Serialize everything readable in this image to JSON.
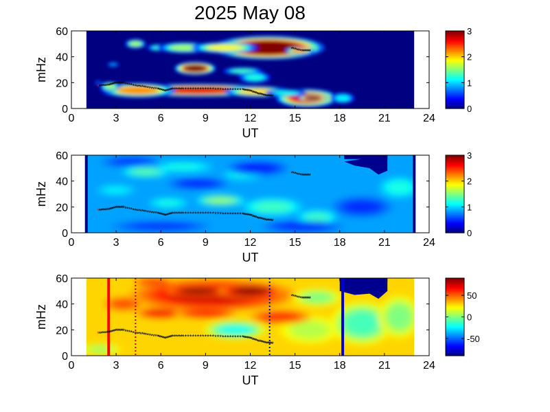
{
  "figure": {
    "title": "2025 May 08"
  },
  "chart_data": [
    {
      "type": "heatmap",
      "xlabel": "UT",
      "ylabel": "mHz",
      "xlim": [
        0,
        24
      ],
      "ylim": [
        0,
        60
      ],
      "xticks": [
        "0",
        "3",
        "6",
        "9",
        "12",
        "15",
        "18",
        "21",
        "24"
      ],
      "yticks": [
        "0",
        "20",
        "40",
        "60"
      ],
      "colorbar": {
        "range": [
          0,
          3
        ],
        "ticks": [
          "0",
          "1",
          "2",
          "3"
        ]
      },
      "data_extent_x": [
        1,
        23
      ],
      "background_value": 0,
      "blobs": [
        {
          "x": 4.3,
          "y": 50,
          "rx": 0.5,
          "ry": 2.5,
          "v": 1.6
        },
        {
          "x": 6.0,
          "y": 47,
          "rx": 0.7,
          "ry": 2,
          "v": 1.3
        },
        {
          "x": 7.6,
          "y": 47,
          "rx": 1.3,
          "ry": 3,
          "v": 1.6
        },
        {
          "x": 13.2,
          "y": 47,
          "rx": 2.7,
          "ry": 6.5,
          "v": 3.4
        },
        {
          "x": 10.3,
          "y": 47,
          "rx": 1.6,
          "ry": 3,
          "v": 1.9
        },
        {
          "x": 15.3,
          "y": 44.5,
          "rx": 0.7,
          "ry": 2,
          "v": 2.2
        },
        {
          "x": 8.3,
          "y": 31,
          "rx": 1.0,
          "ry": 3.5,
          "v": 3.0
        },
        {
          "x": 11.5,
          "y": 29,
          "rx": 1.0,
          "ry": 2,
          "v": 1.3
        },
        {
          "x": 12.3,
          "y": 24,
          "rx": 0.8,
          "ry": 3,
          "v": 1.2
        },
        {
          "x": 8.5,
          "y": 14,
          "rx": 3.8,
          "ry": 3.5,
          "v": 2.7
        },
        {
          "x": 4.5,
          "y": 14,
          "rx": 1.8,
          "ry": 4,
          "v": 2.2
        },
        {
          "x": 2.6,
          "y": 17,
          "rx": 0.5,
          "ry": 2.5,
          "v": 1.6
        },
        {
          "x": 12.5,
          "y": 13,
          "rx": 1.6,
          "ry": 3,
          "v": 2.0
        },
        {
          "x": 15.8,
          "y": 8,
          "rx": 1.5,
          "ry": 5,
          "v": 2.7
        },
        {
          "x": 16.2,
          "y": 8,
          "rx": 0.7,
          "ry": 2,
          "v": 3.3
        },
        {
          "x": 14.4,
          "y": 12,
          "rx": 1.0,
          "ry": 2,
          "v": 1.2
        },
        {
          "x": 18.2,
          "y": 8,
          "rx": 0.6,
          "ry": 3,
          "v": 1.1
        },
        {
          "x": 2.8,
          "y": 34,
          "rx": 0.3,
          "ry": 1.2,
          "v": 0.9
        },
        {
          "x": 1.8,
          "y": 20,
          "rx": 0.2,
          "ry": 1,
          "v": 0.7
        }
      ],
      "ridge": [
        [
          1.9,
          17
        ],
        [
          2.5,
          17.5
        ],
        [
          3.0,
          19
        ],
        [
          3.5,
          19
        ],
        [
          4.3,
          17
        ],
        [
          5.0,
          16
        ],
        [
          5.8,
          14.5
        ],
        [
          6.3,
          13
        ],
        [
          6.8,
          14.5
        ],
        [
          7.5,
          14.5
        ],
        [
          8.5,
          14.5
        ],
        [
          9.5,
          14.5
        ],
        [
          10.5,
          14
        ],
        [
          11.5,
          14
        ],
        [
          12.0,
          13
        ],
        [
          12.5,
          11
        ],
        [
          13.0,
          9.5
        ],
        [
          13.5,
          9
        ],
        [
          14.8,
          46
        ],
        [
          15.5,
          44
        ],
        [
          16.0,
          44
        ]
      ]
    },
    {
      "type": "heatmap",
      "xlabel": "UT",
      "ylabel": "mHz",
      "xlim": [
        0,
        24
      ],
      "ylim": [
        0,
        60
      ],
      "xticks": [
        "0",
        "3",
        "6",
        "9",
        "12",
        "15",
        "18",
        "21",
        "24"
      ],
      "yticks": [
        "0",
        "20",
        "40",
        "60"
      ],
      "colorbar": {
        "range": [
          0,
          3
        ],
        "ticks": [
          "0",
          "1",
          "2",
          "3"
        ]
      },
      "data_extent_x": [
        1,
        23
      ],
      "background_value": 0.85,
      "edge_bars": [
        1.0,
        23.0
      ],
      "mask": {
        "x": [
          18.3,
          21.2
        ],
        "y_min": 47,
        "notch": [
          [
            18.3,
            55
          ],
          [
            19,
            52
          ],
          [
            20,
            50
          ],
          [
            20.6,
            45
          ],
          [
            21.2,
            48
          ],
          [
            21.2,
            60
          ]
        ]
      },
      "blobs": [
        {
          "x": 5.0,
          "y": 47,
          "rx": 1.2,
          "ry": 3,
          "v": 1.4
        },
        {
          "x": 7.5,
          "y": 51,
          "rx": 1.5,
          "ry": 3,
          "v": 1.2
        },
        {
          "x": 11.5,
          "y": 45,
          "rx": 1.0,
          "ry": 3,
          "v": 1.2
        },
        {
          "x": 10.0,
          "y": 25,
          "rx": 1.2,
          "ry": 3,
          "v": 1.6
        },
        {
          "x": 13.5,
          "y": 20,
          "rx": 1.5,
          "ry": 5,
          "v": 1.3
        },
        {
          "x": 6.5,
          "y": 23,
          "rx": 1.0,
          "ry": 3,
          "v": 1.2
        },
        {
          "x": 3.0,
          "y": 33,
          "rx": 1.0,
          "ry": 3,
          "v": 1.1
        },
        {
          "x": 16.5,
          "y": 12,
          "rx": 1.0,
          "ry": 4,
          "v": 1.3
        },
        {
          "x": 22.0,
          "y": 35,
          "rx": 1.0,
          "ry": 6,
          "v": 1.2
        },
        {
          "x": 8.5,
          "y": 38,
          "rx": 1.5,
          "ry": 3,
          "v": 0.4
        },
        {
          "x": 12.5,
          "y": 50,
          "rx": 1.5,
          "ry": 4,
          "v": 0.4
        },
        {
          "x": 6.0,
          "y": 5,
          "rx": 2.5,
          "ry": 3,
          "v": 0.5
        },
        {
          "x": 15.5,
          "y": 5,
          "rx": 2.0,
          "ry": 3,
          "v": 0.4
        },
        {
          "x": 19.5,
          "y": 20,
          "rx": 1.5,
          "ry": 6,
          "v": 0.5
        },
        {
          "x": 4.0,
          "y": 55,
          "rx": 1.5,
          "ry": 3,
          "v": 0.5
        }
      ],
      "ridge": [
        [
          1.9,
          17
        ],
        [
          2.5,
          17.5
        ],
        [
          3.0,
          19
        ],
        [
          3.5,
          19
        ],
        [
          4.3,
          17
        ],
        [
          5.0,
          16
        ],
        [
          5.8,
          14.5
        ],
        [
          6.3,
          13
        ],
        [
          6.8,
          14.5
        ],
        [
          7.5,
          14.5
        ],
        [
          8.5,
          14.5
        ],
        [
          9.5,
          14.5
        ],
        [
          10.5,
          14
        ],
        [
          11.5,
          14
        ],
        [
          12.0,
          13
        ],
        [
          12.5,
          11
        ],
        [
          13.0,
          9.5
        ],
        [
          13.5,
          9
        ],
        [
          14.8,
          46
        ],
        [
          15.5,
          44
        ],
        [
          16.0,
          44
        ]
      ]
    },
    {
      "type": "heatmap",
      "xlabel": "UT",
      "ylabel": "mHz",
      "xlim": [
        0,
        24
      ],
      "ylim": [
        0,
        60
      ],
      "xticks": [
        "0",
        "3",
        "6",
        "9",
        "12",
        "15",
        "18",
        "21",
        "24"
      ],
      "yticks": [
        "0",
        "20",
        "40",
        "60"
      ],
      "colorbar": {
        "range": [
          -90,
          90
        ],
        "ticks": [
          "50",
          "0",
          "-50"
        ],
        "tick_values": [
          50,
          0,
          -50
        ]
      },
      "data_extent_x": [
        1,
        23
      ],
      "background_value": 30,
      "mask": {
        "x": [
          18.0,
          21.2
        ],
        "y_min": 47,
        "notch": [
          [
            18.0,
            60
          ],
          [
            18.0,
            50
          ],
          [
            19,
            47
          ],
          [
            20,
            48
          ],
          [
            20.6,
            44
          ],
          [
            21.2,
            50
          ],
          [
            21.2,
            60
          ]
        ]
      },
      "blobs": [
        {
          "x": 9.5,
          "y": 47,
          "rx": 4.0,
          "ry": 9,
          "v": 75
        },
        {
          "x": 8.5,
          "y": 50,
          "rx": 1.5,
          "ry": 3,
          "v": 90
        },
        {
          "x": 12.0,
          "y": 50,
          "rx": 1.5,
          "ry": 4,
          "v": 88
        },
        {
          "x": 5.5,
          "y": 57,
          "rx": 1.0,
          "ry": 2,
          "v": 70
        },
        {
          "x": 6.0,
          "y": 33,
          "rx": 1.2,
          "ry": 3,
          "v": 70
        },
        {
          "x": 9.0,
          "y": 33,
          "rx": 1.5,
          "ry": 3,
          "v": 65
        },
        {
          "x": 11.0,
          "y": 20,
          "rx": 1.5,
          "ry": 5,
          "v": -20
        },
        {
          "x": 16.0,
          "y": 20,
          "rx": 1.5,
          "ry": 8,
          "v": 10
        },
        {
          "x": 19.5,
          "y": 25,
          "rx": 1.5,
          "ry": 12,
          "v": -10
        },
        {
          "x": 22.0,
          "y": 30,
          "rx": 1.0,
          "ry": 12,
          "v": 0
        },
        {
          "x": 16.5,
          "y": 45,
          "rx": 1.2,
          "ry": 5,
          "v": 0
        },
        {
          "x": 3.5,
          "y": 40,
          "rx": 1.0,
          "ry": 4,
          "v": 55
        },
        {
          "x": 14.0,
          "y": 30,
          "rx": 1.5,
          "ry": 4,
          "v": 60
        },
        {
          "x": 2.0,
          "y": 5,
          "rx": 1.0,
          "ry": 3,
          "v": 5
        }
      ],
      "markers": [
        {
          "x": 2.5,
          "color": "#ff0000",
          "style": "solid"
        },
        {
          "x": 4.3,
          "color": "#cc0000",
          "style": "dotted"
        },
        {
          "x": 13.3,
          "color": "#0000aa",
          "style": "dotted"
        },
        {
          "x": 18.2,
          "color": "#0000cc",
          "style": "solid"
        }
      ],
      "ridge": [
        [
          1.9,
          17
        ],
        [
          2.5,
          17.5
        ],
        [
          3.0,
          19
        ],
        [
          3.5,
          19
        ],
        [
          4.3,
          17
        ],
        [
          5.0,
          16
        ],
        [
          5.8,
          14.5
        ],
        [
          6.3,
          13
        ],
        [
          6.8,
          14.5
        ],
        [
          7.5,
          14.5
        ],
        [
          8.5,
          14.5
        ],
        [
          9.5,
          14.5
        ],
        [
          10.5,
          14
        ],
        [
          11.5,
          14
        ],
        [
          12.0,
          13
        ],
        [
          12.5,
          11
        ],
        [
          13.0,
          9.5
        ],
        [
          13.5,
          9
        ],
        [
          14.8,
          46
        ],
        [
          15.5,
          44
        ],
        [
          16.0,
          44
        ]
      ]
    }
  ]
}
